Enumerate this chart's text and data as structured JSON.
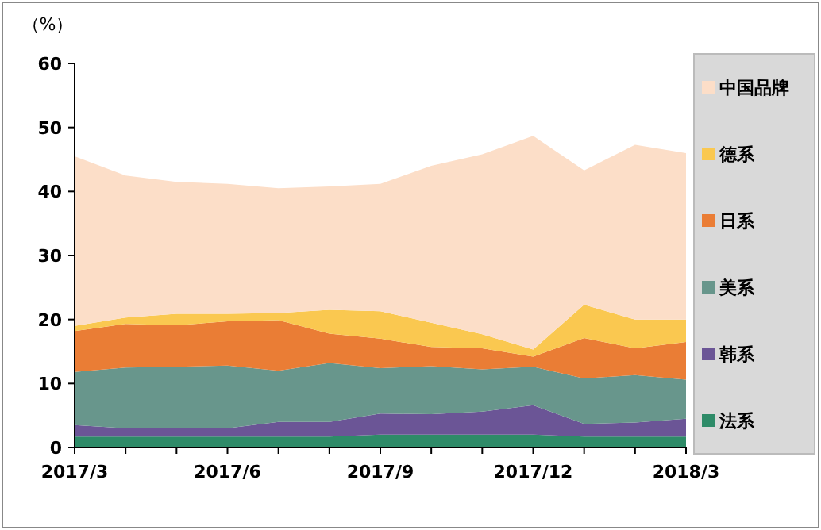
{
  "chart_data": {
    "type": "area",
    "stacked": true,
    "ylabel": "（%）",
    "categories": [
      "2017/3",
      null,
      null,
      "2017/6",
      null,
      null,
      "2017/9",
      null,
      null,
      "2017/12",
      null,
      null,
      "2018/3"
    ],
    "ylim": [
      0,
      60
    ],
    "yticks": [
      0,
      10,
      20,
      30,
      40,
      50,
      60
    ],
    "legend": "right",
    "grid": false,
    "series": [
      {
        "name": "法系",
        "color": "#2e8b68",
        "values": [
          1.7,
          1.7,
          1.7,
          1.7,
          1.7,
          1.7,
          2,
          2,
          2,
          2,
          1.7,
          1.7,
          1.7
        ]
      },
      {
        "name": "韩系",
        "color": "#6b5596",
        "values": [
          1.8,
          1.3,
          1.3,
          1.3,
          2.3,
          2.3,
          3.3,
          3.2,
          3.6,
          4.6,
          2.0,
          2.2,
          2.8
        ]
      },
      {
        "name": "美系",
        "color": "#68968c",
        "values": [
          8.3,
          9.5,
          9.6,
          9.8,
          8.0,
          9.2,
          7.1,
          7.5,
          6.6,
          6.0,
          7.1,
          7.4,
          6.1
        ]
      },
      {
        "name": "日系",
        "color": "#ea7d35",
        "values": [
          6.4,
          6.8,
          6.5,
          6.9,
          7.9,
          4.6,
          4.6,
          3.0,
          3.3,
          1.6,
          6.3,
          4.2,
          5.9
        ]
      },
      {
        "name": "德系",
        "color": "#fac850",
        "values": [
          0.8,
          1.0,
          1.8,
          1.2,
          1.1,
          3.7,
          4.3,
          3.8,
          2.2,
          1.1,
          5.2,
          4.5,
          3.5
        ]
      },
      {
        "name": "中国品牌",
        "color": "#fcdec8",
        "values": [
          26.5,
          22.2,
          20.6,
          20.3,
          19.5,
          19.3,
          19.9,
          24.5,
          28.1,
          33.4,
          21.0,
          27.3,
          26.0
        ]
      }
    ]
  }
}
